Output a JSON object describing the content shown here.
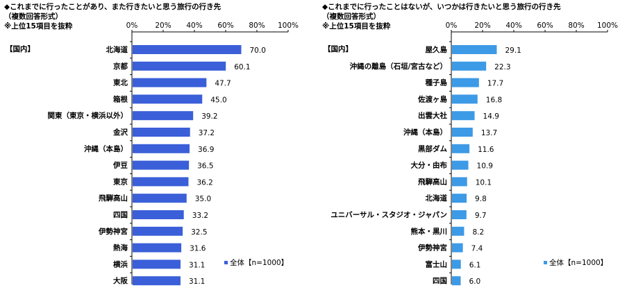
{
  "chart_data": [
    {
      "type": "bar",
      "orientation": "horizontal",
      "title": "◆これまでに行ったことがあり、また行きたいと思う旅行の行き先",
      "subtitle": "（複数回答形式）",
      "note": "※上位15項目を抜粋",
      "section_label": "【国内】",
      "categories": [
        "北海道",
        "京都",
        "東北",
        "箱根",
        "関東（東京・横浜以外）",
        "金沢",
        "沖縄（本島）",
        "伊豆",
        "東京",
        "飛騨高山",
        "四国",
        "伊勢神宮",
        "熱海",
        "横浜",
        "大阪"
      ],
      "series": [
        {
          "name": "全体【n=1000】",
          "values": [
            70.0,
            60.1,
            47.7,
            45.0,
            39.2,
            37.2,
            36.9,
            36.5,
            36.2,
            35.0,
            33.2,
            32.5,
            31.6,
            31.1,
            31.1
          ]
        }
      ],
      "value_labels": [
        "70.0",
        "60.1",
        "47.7",
        "45.0",
        "39.2",
        "37.2",
        "36.9",
        "36.5",
        "36.2",
        "35.0",
        "33.2",
        "32.5",
        "31.6",
        "31.1",
        "31.1"
      ],
      "xlim": [
        0,
        100
      ],
      "ticks": [
        "0%",
        "20%",
        "40%",
        "60%",
        "80%",
        "100%"
      ],
      "tick_values": [
        0,
        20,
        40,
        60,
        80,
        100
      ],
      "legend_label": "全体【n=1000】",
      "legend_position": "bottom-right",
      "bar_color": "#3a5fd8",
      "grid": false
    },
    {
      "type": "bar",
      "orientation": "horizontal",
      "title": "◆これまでに行ったことはないが、いつかは行きたいと思う旅行の行き先",
      "subtitle": "（複数回答形式）",
      "note": "※上位15項目を抜粋",
      "section_label": "【国内】",
      "categories": [
        "屋久島",
        "沖縄の離島（石垣/宮古など）",
        "種子島",
        "佐渡ヶ島",
        "出雲大社",
        "沖縄（本島）",
        "黒部ダム",
        "大分・由布",
        "飛騨高山",
        "北海道",
        "ユニバーサル・スタジオ・ジャパン",
        "熊本・黒川",
        "伊勢神宮",
        "富士山",
        "四国"
      ],
      "series": [
        {
          "name": "全体【n=1000】",
          "values": [
            29.1,
            22.3,
            17.7,
            16.8,
            14.9,
            13.7,
            11.6,
            10.9,
            10.1,
            9.8,
            9.7,
            8.2,
            7.4,
            6.1,
            6.0
          ]
        }
      ],
      "value_labels": [
        "29.1",
        "22.3",
        "17.7",
        "16.8",
        "14.9",
        "13.7",
        "11.6",
        "10.9",
        "10.1",
        "9.8",
        "9.7",
        "8.2",
        "7.4",
        "6.1",
        "6.0"
      ],
      "xlim": [
        0,
        100
      ],
      "ticks": [
        "0%",
        "20%",
        "40%",
        "60%",
        "80%",
        "100%"
      ],
      "tick_values": [
        0,
        20,
        40,
        60,
        80,
        100
      ],
      "legend_label": "全体【n=1000】",
      "legend_position": "bottom-right",
      "bar_color": "#3d9ae6",
      "grid": false
    }
  ]
}
